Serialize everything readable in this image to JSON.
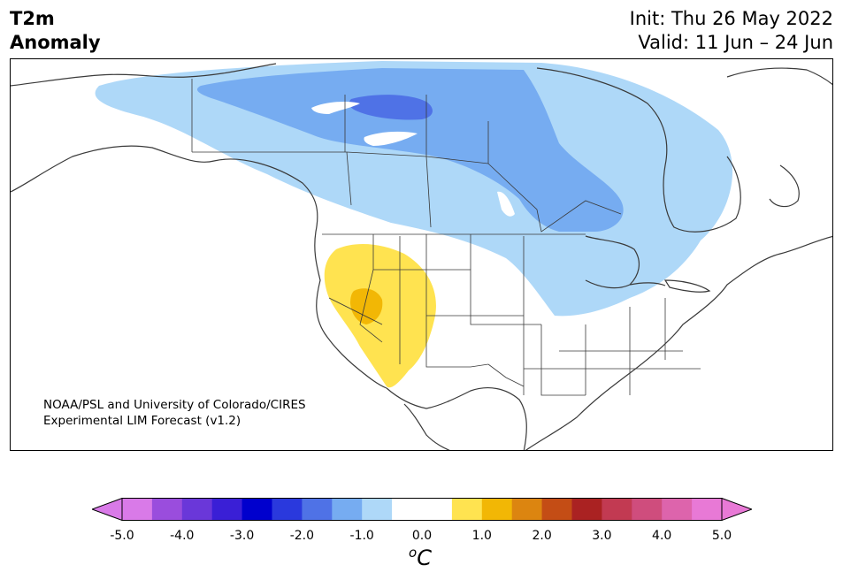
{
  "title": {
    "line1": "T2m",
    "line2": "Anomaly"
  },
  "info": {
    "init": "Init: Thu 26 May 2022",
    "valid": "Valid: 11 Jun – 24 Jun"
  },
  "credit": {
    "line1": "NOAA/PSL and University of Colorado/CIRES",
    "line2": "Experimental LIM Forecast (v1.2)"
  },
  "colorbar": {
    "ticks": [
      "-5.0",
      "-4.0",
      "-3.0",
      "-2.0",
      "-1.0",
      "0.0",
      "1.0",
      "2.0",
      "3.0",
      "4.0",
      "5.0"
    ],
    "unit": "C",
    "unit_prefix": "o",
    "colors": [
      "#d97ae8",
      "#9a4ddd",
      "#6a37d9",
      "#3a1fd6",
      "#0000cd",
      "#2a39dd",
      "#4f72e6",
      "#76acf1",
      "#aed8f8",
      "#ffffff",
      "#ffffff",
      "#ffe350",
      "#f2b705",
      "#dc8510",
      "#c44d15",
      "#aa2222",
      "#c23a52",
      "#cf4d7d",
      "#dd64ac",
      "#e879d6"
    ],
    "under_color": "#d97ae8",
    "over_color": "#e879d6"
  },
  "anomaly_colors": {
    "light_blue": "#aed8f8",
    "medium_blue": "#76acf1",
    "dark_blue": "#4f72e6",
    "yellow": "#ffe350",
    "gold": "#f2b705"
  }
}
